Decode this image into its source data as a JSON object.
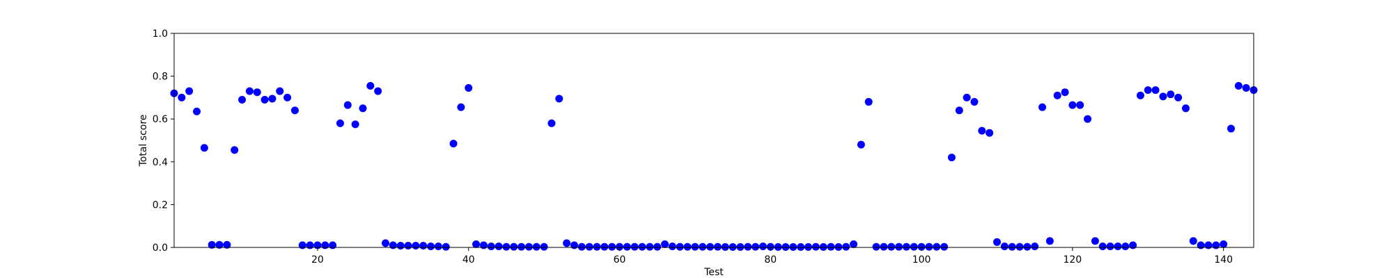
{
  "chart_data": {
    "type": "scatter",
    "title": "",
    "xlabel": "Test",
    "ylabel": "Total score",
    "xlim": [
      1,
      144
    ],
    "ylim": [
      0.0,
      1.0
    ],
    "x_ticks": [
      20,
      40,
      60,
      80,
      100,
      120,
      140
    ],
    "x_tick_labels": [
      "20",
      "40",
      "60",
      "80",
      "100",
      "120",
      "140"
    ],
    "y_ticks": [
      0.0,
      0.2,
      0.4,
      0.6,
      0.8,
      1.0
    ],
    "y_tick_labels": [
      "0.0",
      "0.2",
      "0.4",
      "0.6",
      "0.8",
      "1.0"
    ],
    "grid": false,
    "marker_color": "#0000ff",
    "points": [
      [
        1,
        0.72
      ],
      [
        2,
        0.7
      ],
      [
        3,
        0.73
      ],
      [
        4,
        0.635
      ],
      [
        5,
        0.465
      ],
      [
        6,
        0.012
      ],
      [
        7,
        0.012
      ],
      [
        8,
        0.012
      ],
      [
        9,
        0.455
      ],
      [
        10,
        0.69
      ],
      [
        11,
        0.73
      ],
      [
        12,
        0.725
      ],
      [
        13,
        0.69
      ],
      [
        14,
        0.695
      ],
      [
        15,
        0.73
      ],
      [
        16,
        0.7
      ],
      [
        17,
        0.64
      ],
      [
        18,
        0.01
      ],
      [
        19,
        0.01
      ],
      [
        20,
        0.01
      ],
      [
        21,
        0.01
      ],
      [
        22,
        0.01
      ],
      [
        23,
        0.58
      ],
      [
        24,
        0.665
      ],
      [
        25,
        0.575
      ],
      [
        26,
        0.65
      ],
      [
        27,
        0.755
      ],
      [
        28,
        0.73
      ],
      [
        29,
        0.02
      ],
      [
        30,
        0.01
      ],
      [
        31,
        0.008
      ],
      [
        32,
        0.008
      ],
      [
        33,
        0.008
      ],
      [
        34,
        0.008
      ],
      [
        35,
        0.005
      ],
      [
        36,
        0.005
      ],
      [
        37,
        0.003
      ],
      [
        38,
        0.485
      ],
      [
        39,
        0.655
      ],
      [
        40,
        0.745
      ],
      [
        41,
        0.015
      ],
      [
        42,
        0.01
      ],
      [
        43,
        0.005
      ],
      [
        44,
        0.005
      ],
      [
        45,
        0.003
      ],
      [
        46,
        0.003
      ],
      [
        47,
        0.003
      ],
      [
        48,
        0.003
      ],
      [
        49,
        0.003
      ],
      [
        50,
        0.003
      ],
      [
        51,
        0.58
      ],
      [
        52,
        0.695
      ],
      [
        53,
        0.02
      ],
      [
        54,
        0.01
      ],
      [
        55,
        0.003
      ],
      [
        56,
        0.003
      ],
      [
        57,
        0.003
      ],
      [
        58,
        0.003
      ],
      [
        59,
        0.003
      ],
      [
        60,
        0.003
      ],
      [
        61,
        0.003
      ],
      [
        62,
        0.003
      ],
      [
        63,
        0.003
      ],
      [
        64,
        0.003
      ],
      [
        65,
        0.003
      ],
      [
        66,
        0.015
      ],
      [
        67,
        0.005
      ],
      [
        68,
        0.003
      ],
      [
        69,
        0.003
      ],
      [
        70,
        0.003
      ],
      [
        71,
        0.003
      ],
      [
        72,
        0.003
      ],
      [
        73,
        0.003
      ],
      [
        74,
        0.002
      ],
      [
        75,
        0.002
      ],
      [
        76,
        0.002
      ],
      [
        77,
        0.003
      ],
      [
        78,
        0.003
      ],
      [
        79,
        0.005
      ],
      [
        80,
        0.003
      ],
      [
        81,
        0.002
      ],
      [
        82,
        0.002
      ],
      [
        83,
        0.002
      ],
      [
        84,
        0.002
      ],
      [
        85,
        0.002
      ],
      [
        86,
        0.003
      ],
      [
        87,
        0.002
      ],
      [
        88,
        0.003
      ],
      [
        89,
        0.002
      ],
      [
        90,
        0.003
      ],
      [
        91,
        0.015
      ],
      [
        92,
        0.48
      ],
      [
        93,
        0.68
      ],
      [
        94,
        0.003
      ],
      [
        95,
        0.003
      ],
      [
        96,
        0.003
      ],
      [
        97,
        0.003
      ],
      [
        98,
        0.003
      ],
      [
        99,
        0.003
      ],
      [
        100,
        0.003
      ],
      [
        101,
        0.003
      ],
      [
        102,
        0.003
      ],
      [
        103,
        0.003
      ],
      [
        104,
        0.42
      ],
      [
        105,
        0.64
      ],
      [
        106,
        0.7
      ],
      [
        107,
        0.68
      ],
      [
        108,
        0.545
      ],
      [
        109,
        0.535
      ],
      [
        110,
        0.025
      ],
      [
        111,
        0.005
      ],
      [
        112,
        0.003
      ],
      [
        113,
        0.003
      ],
      [
        114,
        0.003
      ],
      [
        115,
        0.005
      ],
      [
        116,
        0.655
      ],
      [
        117,
        0.03
      ],
      [
        118,
        0.71
      ],
      [
        119,
        0.725
      ],
      [
        120,
        0.665
      ],
      [
        121,
        0.665
      ],
      [
        122,
        0.6
      ],
      [
        123,
        0.03
      ],
      [
        124,
        0.005
      ],
      [
        125,
        0.005
      ],
      [
        126,
        0.005
      ],
      [
        127,
        0.005
      ],
      [
        128,
        0.01
      ],
      [
        129,
        0.71
      ],
      [
        130,
        0.735
      ],
      [
        131,
        0.735
      ],
      [
        132,
        0.705
      ],
      [
        133,
        0.715
      ],
      [
        134,
        0.7
      ],
      [
        135,
        0.65
      ],
      [
        136,
        0.03
      ],
      [
        137,
        0.01
      ],
      [
        138,
        0.01
      ],
      [
        139,
        0.01
      ],
      [
        140,
        0.015
      ],
      [
        141,
        0.555
      ],
      [
        142,
        0.755
      ],
      [
        143,
        0.745
      ],
      [
        144,
        0.735
      ]
    ]
  }
}
